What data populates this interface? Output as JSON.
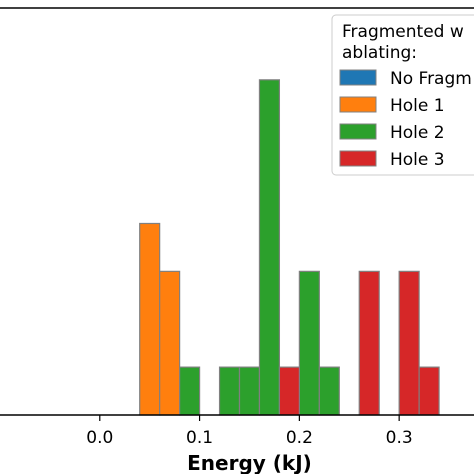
{
  "chart_data": {
    "type": "bar",
    "xlabel": "Energy (kJ)",
    "xlim": [
      -0.1,
      0.375
    ],
    "ylim": [
      0,
      4.25
    ],
    "xticks": [
      {
        "value": 0.0,
        "label": "0.0"
      },
      {
        "value": 0.1,
        "label": "0.1"
      },
      {
        "value": 0.2,
        "label": "0.2"
      },
      {
        "value": 0.3,
        "label": "0.3"
      }
    ],
    "bin_width": 0.02,
    "edge_color": "#808080",
    "legend": {
      "title": "Fragmented w\nablating:",
      "position": "top-right"
    },
    "series": [
      {
        "name": "No Fragm",
        "color": "#1f77b4",
        "bars": []
      },
      {
        "name": "Hole 1",
        "color": "#ff7f0e",
        "bars": [
          {
            "x": 0.04,
            "value": 2
          },
          {
            "x": 0.06,
            "value": 1.5
          }
        ]
      },
      {
        "name": "Hole 2",
        "color": "#2ca02c",
        "bars": [
          {
            "x": 0.08,
            "value": 0.5
          },
          {
            "x": 0.12,
            "value": 0.5
          },
          {
            "x": 0.14,
            "value": 0.5
          },
          {
            "x": 0.16,
            "value": 3.5
          },
          {
            "x": 0.2,
            "value": 1.5
          },
          {
            "x": 0.22,
            "value": 0.5
          }
        ]
      },
      {
        "name": "Hole 3",
        "color": "#d62728",
        "bars": [
          {
            "x": 0.18,
            "value": 0.5
          },
          {
            "x": 0.26,
            "value": 1.5
          },
          {
            "x": 0.3,
            "value": 1.5
          },
          {
            "x": 0.32,
            "value": 0.5
          }
        ]
      }
    ]
  }
}
